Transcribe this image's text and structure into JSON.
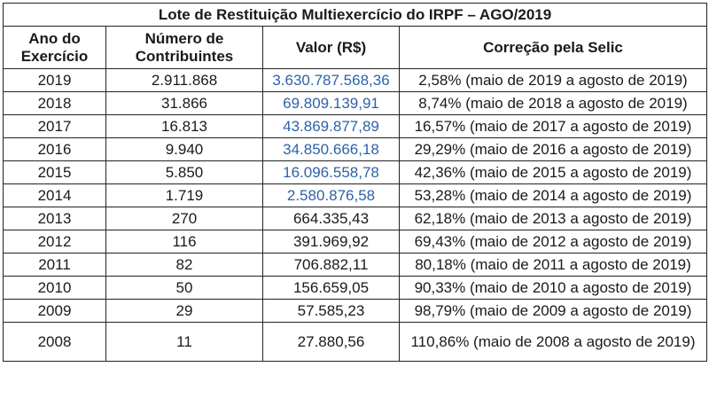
{
  "title": "Lote de Restituição Multiexercício do IRPF – AGO/2019",
  "headers": {
    "ano": "Ano do Exercício",
    "contribuintes": "Número de Contribuintes",
    "valor": "Valor (R$)",
    "correcao": "Correção pela Selic"
  },
  "colors": {
    "highlight_value": "#2e62a8",
    "text": "#1a1a1a",
    "border": "#222222"
  },
  "rows": [
    {
      "ano": "2019",
      "contribuintes": "2.911.868",
      "valor": "3.630.787.568,36",
      "correcao": "2,58% (maio de 2019 a agosto de 2019)"
    },
    {
      "ano": "2018",
      "contribuintes": "31.866",
      "valor": "69.809.139,91",
      "correcao": "8,74% (maio de 2018 a agosto de 2019)"
    },
    {
      "ano": "2017",
      "contribuintes": "16.813",
      "valor": "43.869.877,89",
      "correcao": "16,57% (maio de 2017 a agosto de 2019)"
    },
    {
      "ano": "2016",
      "contribuintes": "9.940",
      "valor": "34.850.666,18",
      "correcao": "29,29% (maio de 2016 a agosto de 2019)"
    },
    {
      "ano": "2015",
      "contribuintes": "5.850",
      "valor": "16.096.558,78",
      "correcao": "42,36% (maio de 2015 a agosto de 2019)"
    },
    {
      "ano": "2014",
      "contribuintes": "1.719",
      "valor": "2.580.876,58",
      "correcao": "53,28% (maio de 2014 a agosto de 2019)"
    },
    {
      "ano": "2013",
      "contribuintes": "270",
      "valor": "664.335,43",
      "correcao": "62,18% (maio de 2013 a agosto de 2019)"
    },
    {
      "ano": "2012",
      "contribuintes": "116",
      "valor": "391.969,92",
      "correcao": "69,43% (maio de 2012 a agosto de 2019)"
    },
    {
      "ano": "2011",
      "contribuintes": "82",
      "valor": "706.882,11",
      "correcao": "80,18% (maio de 2011 a agosto de 2019)"
    },
    {
      "ano": "2010",
      "contribuintes": "50",
      "valor": "156.659,05",
      "correcao": "90,33% (maio de 2010 a agosto de 2019)"
    },
    {
      "ano": "2009",
      "contribuintes": "29",
      "valor": "57.585,23",
      "correcao": "98,79% (maio de 2009 a agosto de 2019)"
    },
    {
      "ano": "2008",
      "contribuintes": "11",
      "valor": "27.880,56",
      "correcao": "110,86% (maio de 2008 a agosto de 2019)"
    }
  ]
}
